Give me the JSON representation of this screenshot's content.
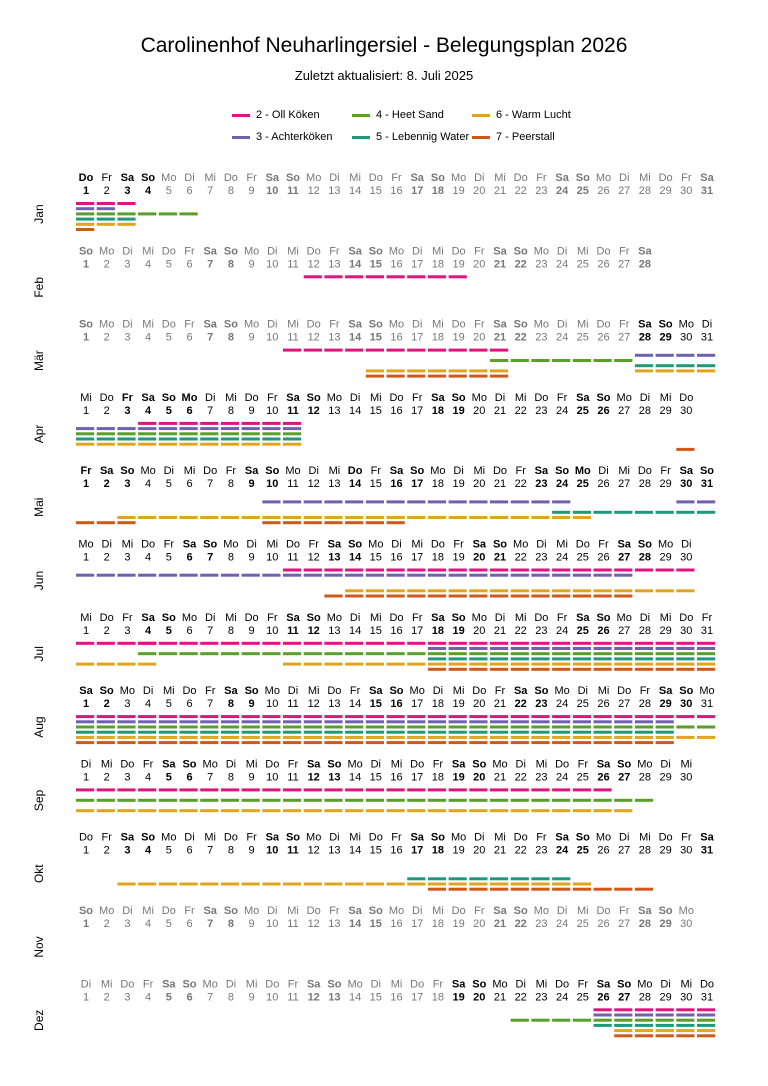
{
  "title": "Carolinenhof Neuharlingersiel - Belegungsplan 2026",
  "subtitle": "Zuletzt aktualisiert:  8. Juli 2025",
  "colors": {
    "oll_koken": "#e0137f",
    "achterkoken": "#7060b0",
    "heet_sand": "#58a02a",
    "lebennig_water": "#1e9a7a",
    "warm_lucht": "#e0a51c",
    "peerstall": "#d05818",
    "today_text": "#000000",
    "other_text": "#777777"
  },
  "chart_data": {
    "type": "timeline",
    "year": 2026,
    "title": "Carolinenhof Neuharlingersiel - Belegungsplan 2026",
    "legend": [
      {
        "id": 2,
        "label": "2 - Oll Köken",
        "color": "#e0137f"
      },
      {
        "id": 3,
        "label": "3 - Achterköken",
        "color": "#7060b0"
      },
      {
        "id": 4,
        "label": "4 - Heet Sand",
        "color": "#58a02a"
      },
      {
        "id": 5,
        "label": "5 - Lebennig Water",
        "color": "#1e9a7a"
      },
      {
        "id": 6,
        "label": "6 - Warm Lucht",
        "color": "#e0a51c"
      },
      {
        "id": 7,
        "label": "7 - Peerstall",
        "color": "#d05818"
      }
    ],
    "legend_placement": "top",
    "weekdays": [
      "So",
      "Mo",
      "Di",
      "Mi",
      "Do",
      "Fr",
      "Sa"
    ],
    "months": [
      {
        "label": "Jan",
        "days": 31,
        "first_weekday": 4,
        "dark": true,
        "bold": [
          1,
          3,
          4,
          10,
          11,
          17,
          18,
          24,
          25,
          31
        ],
        "darkUntil": 4,
        "bookings": [
          {
            "u": 2,
            "r": [
              [
                1,
                3
              ]
            ]
          },
          {
            "u": 3,
            "r": [
              [
                1,
                2
              ]
            ]
          },
          {
            "u": 4,
            "r": [
              [
                1,
                6
              ]
            ]
          },
          {
            "u": 5,
            "r": [
              [
                1,
                3
              ]
            ]
          },
          {
            "u": 6,
            "r": [
              [
                1,
                3
              ]
            ]
          },
          {
            "u": 7,
            "r": [
              [
                1,
                1
              ]
            ]
          }
        ]
      },
      {
        "label": "Feb",
        "days": 28,
        "first_weekday": 0,
        "dark": false,
        "bold": [
          1,
          7,
          8,
          14,
          15,
          21,
          22,
          28
        ],
        "bookings": [
          {
            "u": 2,
            "r": [
              [
                12,
                19
              ]
            ]
          }
        ]
      },
      {
        "label": "Mär",
        "days": 31,
        "first_weekday": 0,
        "dark": false,
        "bold": [
          1,
          7,
          8,
          14,
          15,
          21,
          22,
          28,
          29
        ],
        "darkFrom": 28,
        "bookings": [
          {
            "u": 2,
            "r": [
              [
                11,
                21
              ]
            ]
          },
          {
            "u": 3,
            "r": [
              [
                28,
                31
              ]
            ]
          },
          {
            "u": 4,
            "r": [
              [
                21,
                27
              ]
            ]
          },
          {
            "u": 5,
            "r": [
              [
                28,
                31
              ]
            ]
          },
          {
            "u": 6,
            "r": [
              [
                15,
                21
              ],
              [
                28,
                31
              ]
            ]
          },
          {
            "u": 7,
            "r": [
              [
                15,
                21
              ]
            ]
          }
        ]
      },
      {
        "label": "Apr",
        "days": 30,
        "first_weekday": 3,
        "dark": true,
        "bold": [
          3,
          4,
          5,
          6,
          11,
          12,
          18,
          19,
          25,
          26
        ],
        "bookings": [
          {
            "u": 2,
            "r": [
              [
                4,
                11
              ]
            ]
          },
          {
            "u": 3,
            "r": [
              [
                1,
                11
              ]
            ]
          },
          {
            "u": 4,
            "r": [
              [
                1,
                11
              ]
            ]
          },
          {
            "u": 5,
            "r": [
              [
                1,
                11
              ]
            ]
          },
          {
            "u": 6,
            "r": [
              [
                1,
                11
              ]
            ]
          },
          {
            "u": 7,
            "r": [
              [
                30,
                30
              ]
            ]
          }
        ]
      },
      {
        "label": "Mai",
        "days": 31,
        "first_weekday": 5,
        "dark": true,
        "bold": [
          1,
          2,
          3,
          9,
          10,
          14,
          16,
          17,
          23,
          24,
          25,
          30,
          31
        ],
        "bookings": [
          {
            "u": 3,
            "r": [
              [
                10,
                24
              ],
              [
                30,
                31
              ]
            ]
          },
          {
            "u": 5,
            "r": [
              [
                24,
                31
              ]
            ]
          },
          {
            "u": 6,
            "r": [
              [
                3,
                10
              ],
              [
                11,
                16
              ],
              [
                16,
                25
              ]
            ]
          },
          {
            "u": 7,
            "r": [
              [
                1,
                3
              ],
              [
                10,
                16
              ]
            ]
          }
        ]
      },
      {
        "label": "Jun",
        "days": 30,
        "first_weekday": 1,
        "dark": true,
        "bold": [
          6,
          7,
          13,
          14,
          20,
          21,
          27,
          28
        ],
        "bookings": [
          {
            "u": 2,
            "r": [
              [
                11,
                30
              ]
            ]
          },
          {
            "u": 3,
            "r": [
              [
                1,
                27
              ]
            ]
          },
          {
            "u": 6,
            "r": [
              [
                14,
                26
              ],
              [
                27,
                30
              ]
            ]
          },
          {
            "u": 7,
            "r": [
              [
                13,
                27
              ]
            ]
          }
        ]
      },
      {
        "label": "Jul",
        "days": 31,
        "first_weekday": 3,
        "dark": true,
        "bold": [
          4,
          5,
          11,
          12,
          18,
          19,
          25,
          26
        ],
        "bookings": [
          {
            "u": 2,
            "r": [
              [
                1,
                4
              ],
              [
                4,
                31
              ]
            ]
          },
          {
            "u": 3,
            "r": [
              [
                18,
                31
              ]
            ]
          },
          {
            "u": 4,
            "r": [
              [
                4,
                31
              ]
            ]
          },
          {
            "u": 5,
            "r": [
              [
                18,
                31
              ]
            ]
          },
          {
            "u": 6,
            "r": [
              [
                1,
                4
              ],
              [
                11,
                31
              ]
            ]
          },
          {
            "u": 7,
            "r": [
              [
                18,
                31
              ]
            ]
          }
        ]
      },
      {
        "label": "Aug",
        "days": 31,
        "first_weekday": 6,
        "dark": true,
        "bold": [
          1,
          2,
          8,
          9,
          15,
          16,
          22,
          23,
          29,
          30
        ],
        "bookings": [
          {
            "u": 2,
            "r": [
              [
                1,
                31
              ]
            ]
          },
          {
            "u": 3,
            "r": [
              [
                1,
                29
              ]
            ]
          },
          {
            "u": 4,
            "r": [
              [
                1,
                31
              ]
            ]
          },
          {
            "u": 5,
            "r": [
              [
                1,
                29
              ]
            ]
          },
          {
            "u": 6,
            "r": [
              [
                1,
                31
              ]
            ]
          },
          {
            "u": 7,
            "r": [
              [
                1,
                29
              ]
            ]
          }
        ]
      },
      {
        "label": "Sep",
        "days": 30,
        "first_weekday": 2,
        "dark": true,
        "bold": [
          5,
          6,
          12,
          13,
          19,
          20,
          26,
          27
        ],
        "bookings": [
          {
            "u": 2,
            "r": [
              [
                1,
                26
              ]
            ]
          },
          {
            "u": 4,
            "r": [
              [
                1,
                28
              ]
            ]
          },
          {
            "u": 6,
            "r": [
              [
                1,
                27
              ]
            ]
          }
        ]
      },
      {
        "label": "Okt",
        "days": 31,
        "first_weekday": 4,
        "dark": true,
        "bold": [
          3,
          4,
          10,
          11,
          17,
          18,
          24,
          25,
          31
        ],
        "bookings": [
          {
            "u": 5,
            "r": [
              [
                17,
                24
              ]
            ]
          },
          {
            "u": 6,
            "r": [
              [
                3,
                25
              ]
            ]
          },
          {
            "u": 7,
            "r": [
              [
                18,
                28
              ]
            ]
          }
        ]
      },
      {
        "label": "Nov",
        "days": 30,
        "first_weekday": 0,
        "dark": false,
        "bold": [
          1,
          7,
          8,
          14,
          15,
          21,
          22,
          28,
          29
        ],
        "bookings": []
      },
      {
        "label": "Dez",
        "days": 31,
        "first_weekday": 2,
        "dark": false,
        "bold": [
          5,
          6,
          12,
          13,
          19,
          20,
          26,
          27
        ],
        "darkFrom": 19,
        "bookings": [
          {
            "u": 2,
            "r": [
              [
                26,
                31
              ]
            ]
          },
          {
            "u": 3,
            "r": [
              [
                26,
                31
              ]
            ]
          },
          {
            "u": 4,
            "r": [
              [
                22,
                31
              ]
            ]
          },
          {
            "u": 5,
            "r": [
              [
                26,
                31
              ]
            ]
          },
          {
            "u": 6,
            "r": [
              [
                27,
                31
              ]
            ]
          },
          {
            "u": 7,
            "r": [
              [
                27,
                31
              ]
            ]
          }
        ]
      }
    ]
  }
}
